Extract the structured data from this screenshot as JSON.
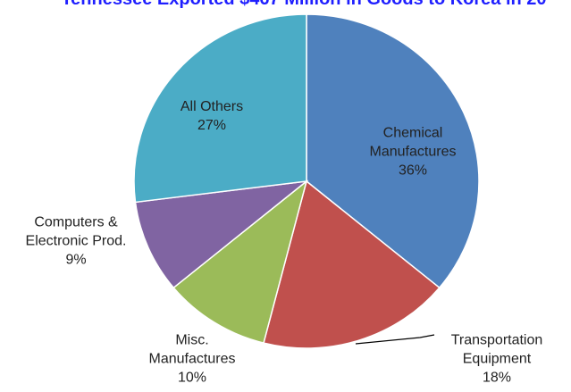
{
  "chart_data": {
    "type": "pie",
    "title": "Tennessee Exported $467 Million in Goods to Korea in 20",
    "categories": [
      "Chemical\nManufactures",
      "Transportation\nEquipment",
      "Misc.\nManufactures",
      "Computers &\nElectronic Prod.",
      "All Others"
    ],
    "values": [
      36,
      18,
      10,
      9,
      27
    ],
    "value_labels": [
      "36%",
      "18%",
      "10%",
      "9%",
      "27%"
    ],
    "colors": [
      "#4f81bd",
      "#c0504d",
      "#9bbb59",
      "#8064a2",
      "#4bacc6"
    ]
  }
}
